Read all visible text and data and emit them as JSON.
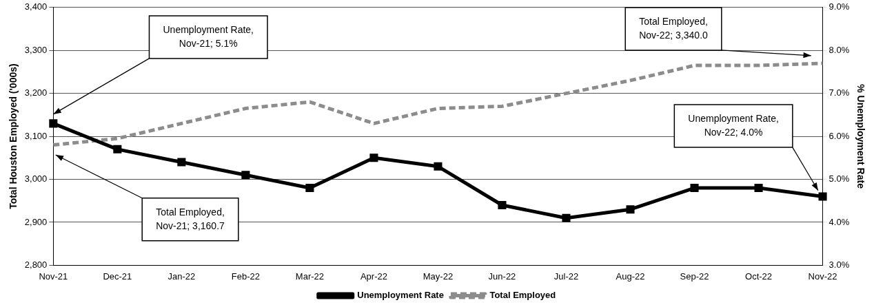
{
  "chart_data": {
    "type": "line",
    "categories": [
      "Nov-21",
      "Dec-21",
      "Jan-22",
      "Feb-22",
      "Mar-22",
      "Apr-22",
      "May-22",
      "Jun-22",
      "Jul-22",
      "Aug-22",
      "Sep-22",
      "Oct-22",
      "Nov-22"
    ],
    "series": [
      {
        "name": "Unemployment Rate",
        "color": "#000000",
        "axis": "y2",
        "marker": "square",
        "line_style": "solid",
        "values": [
          6.3,
          5.7,
          5.4,
          5.1,
          4.8,
          5.5,
          5.3,
          4.4,
          4.1,
          4.3,
          4.8,
          4.8,
          4.6
        ]
      },
      {
        "name": "Total Employed",
        "color": "#8c8c8c",
        "axis": "y",
        "marker": "none",
        "line_style": "dashed",
        "values": [
          3080,
          3095,
          3130,
          3165,
          3180,
          3130,
          3165,
          3170,
          3200,
          3230,
          3265,
          3265,
          3270
        ]
      }
    ],
    "ylabel": "Total Houston Employed ('000s)",
    "y2label": "% Unemployment Rate",
    "ylim": [
      2800,
      3400
    ],
    "yticks": [
      {
        "value": 2800,
        "label": "2,800"
      },
      {
        "value": 2900,
        "label": "2,900"
      },
      {
        "value": 3000,
        "label": "3,000"
      },
      {
        "value": 3100,
        "label": "3,100"
      },
      {
        "value": 3200,
        "label": "3,200"
      },
      {
        "value": 3300,
        "label": "3,300"
      },
      {
        "value": 3400,
        "label": "3,400"
      }
    ],
    "y2lim": [
      3,
      9
    ],
    "y2ticks": [
      {
        "value": 3,
        "label": "3.0%"
      },
      {
        "value": 4,
        "label": "4.0%"
      },
      {
        "value": 5,
        "label": "5.0%"
      },
      {
        "value": 6,
        "label": "6.0%"
      },
      {
        "value": 7,
        "label": "7.0%"
      },
      {
        "value": 8,
        "label": "8.0%"
      },
      {
        "value": 9,
        "label": "9.0%"
      }
    ],
    "grid": "y",
    "legend": "bottom",
    "annotations": [
      "Unemployment Rate, Nov-21; 5.1%",
      "Total Employed, Nov-21; 3,160.7",
      "Total Employed, Nov-22; 3,340.0",
      "Unemployment Rate, Nov-22; 4.0%"
    ]
  }
}
